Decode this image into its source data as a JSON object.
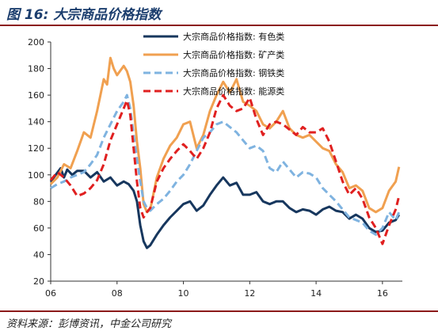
{
  "figure": {
    "title": "图 16: 大宗商品价格指数",
    "source": "资料来源：彭博资讯，中金公司研究"
  },
  "chart_data": {
    "type": "line",
    "xlim": [
      2006,
      2016.6
    ],
    "ylim": [
      20,
      200
    ],
    "x_ticks": [
      2006,
      2008,
      2010,
      2012,
      2014,
      2016
    ],
    "x_tick_labels": [
      "06",
      "08",
      "10",
      "12",
      "14",
      "16"
    ],
    "y_ticks": [
      20,
      40,
      60,
      80,
      100,
      120,
      140,
      160,
      180,
      200
    ],
    "y_tick_labels": [
      "20",
      "40",
      "60",
      "80",
      "100",
      "120",
      "140",
      "160",
      "180",
      "200"
    ],
    "legend_position": "top-center",
    "grid": false,
    "series": [
      {
        "name": "大宗商品价格指数: 有色类",
        "color": "#17375e",
        "style": "solid",
        "points": [
          [
            2006.0,
            95
          ],
          [
            2006.15,
            100
          ],
          [
            2006.3,
            105
          ],
          [
            2006.4,
            98
          ],
          [
            2006.5,
            104
          ],
          [
            2006.65,
            100
          ],
          [
            2006.8,
            103
          ],
          [
            2007.0,
            103
          ],
          [
            2007.2,
            98
          ],
          [
            2007.4,
            102
          ],
          [
            2007.6,
            95
          ],
          [
            2007.8,
            98
          ],
          [
            2008.0,
            92
          ],
          [
            2008.2,
            95
          ],
          [
            2008.35,
            93
          ],
          [
            2008.5,
            88
          ],
          [
            2008.6,
            80
          ],
          [
            2008.7,
            62
          ],
          [
            2008.8,
            50
          ],
          [
            2008.9,
            45
          ],
          [
            2009.0,
            47
          ],
          [
            2009.2,
            55
          ],
          [
            2009.4,
            62
          ],
          [
            2009.6,
            68
          ],
          [
            2009.8,
            73
          ],
          [
            2010.0,
            78
          ],
          [
            2010.2,
            80
          ],
          [
            2010.4,
            73
          ],
          [
            2010.6,
            77
          ],
          [
            2010.8,
            85
          ],
          [
            2011.0,
            92
          ],
          [
            2011.2,
            98
          ],
          [
            2011.4,
            92
          ],
          [
            2011.6,
            94
          ],
          [
            2011.8,
            85
          ],
          [
            2012.0,
            85
          ],
          [
            2012.2,
            87
          ],
          [
            2012.4,
            80
          ],
          [
            2012.6,
            78
          ],
          [
            2012.8,
            80
          ],
          [
            2013.0,
            80
          ],
          [
            2013.2,
            75
          ],
          [
            2013.4,
            72
          ],
          [
            2013.6,
            74
          ],
          [
            2013.8,
            73
          ],
          [
            2014.0,
            70
          ],
          [
            2014.2,
            74
          ],
          [
            2014.4,
            76
          ],
          [
            2014.6,
            73
          ],
          [
            2014.8,
            72
          ],
          [
            2015.0,
            67
          ],
          [
            2015.2,
            70
          ],
          [
            2015.4,
            67
          ],
          [
            2015.6,
            60
          ],
          [
            2015.8,
            57
          ],
          [
            2016.0,
            58
          ],
          [
            2016.2,
            64
          ],
          [
            2016.4,
            66
          ],
          [
            2016.5,
            70
          ]
        ]
      },
      {
        "name": "大宗商品价格指数: 矿产类",
        "color": "#f0a050",
        "style": "solid",
        "points": [
          [
            2006.0,
            93
          ],
          [
            2006.2,
            98
          ],
          [
            2006.4,
            108
          ],
          [
            2006.6,
            105
          ],
          [
            2006.8,
            118
          ],
          [
            2007.0,
            132
          ],
          [
            2007.2,
            128
          ],
          [
            2007.4,
            148
          ],
          [
            2007.6,
            172
          ],
          [
            2007.7,
            168
          ],
          [
            2007.8,
            188
          ],
          [
            2007.9,
            180
          ],
          [
            2008.0,
            175
          ],
          [
            2008.2,
            182
          ],
          [
            2008.3,
            178
          ],
          [
            2008.4,
            170
          ],
          [
            2008.5,
            152
          ],
          [
            2008.6,
            125
          ],
          [
            2008.7,
            105
          ],
          [
            2008.8,
            78
          ],
          [
            2008.9,
            72
          ],
          [
            2009.0,
            74
          ],
          [
            2009.2,
            98
          ],
          [
            2009.4,
            112
          ],
          [
            2009.6,
            122
          ],
          [
            2009.8,
            128
          ],
          [
            2010.0,
            138
          ],
          [
            2010.2,
            140
          ],
          [
            2010.4,
            120
          ],
          [
            2010.6,
            130
          ],
          [
            2010.8,
            148
          ],
          [
            2011.0,
            160
          ],
          [
            2011.2,
            170
          ],
          [
            2011.4,
            162
          ],
          [
            2011.6,
            172
          ],
          [
            2011.8,
            155
          ],
          [
            2012.0,
            152
          ],
          [
            2012.2,
            148
          ],
          [
            2012.4,
            138
          ],
          [
            2012.6,
            135
          ],
          [
            2012.8,
            140
          ],
          [
            2013.0,
            148
          ],
          [
            2013.2,
            135
          ],
          [
            2013.4,
            130
          ],
          [
            2013.6,
            128
          ],
          [
            2013.8,
            130
          ],
          [
            2014.0,
            125
          ],
          [
            2014.2,
            120
          ],
          [
            2014.4,
            118
          ],
          [
            2014.6,
            108
          ],
          [
            2014.8,
            102
          ],
          [
            2015.0,
            90
          ],
          [
            2015.2,
            92
          ],
          [
            2015.4,
            88
          ],
          [
            2015.6,
            75
          ],
          [
            2015.8,
            72
          ],
          [
            2016.0,
            75
          ],
          [
            2016.2,
            88
          ],
          [
            2016.4,
            95
          ],
          [
            2016.5,
            106
          ]
        ]
      },
      {
        "name": "大宗商品价格指数: 钢铁类",
        "color": "#7fb3e0",
        "style": "dashed",
        "points": [
          [
            2006.0,
            90
          ],
          [
            2006.2,
            93
          ],
          [
            2006.4,
            95
          ],
          [
            2006.6,
            98
          ],
          [
            2006.8,
            100
          ],
          [
            2007.0,
            102
          ],
          [
            2007.2,
            108
          ],
          [
            2007.4,
            115
          ],
          [
            2007.6,
            128
          ],
          [
            2007.8,
            138
          ],
          [
            2008.0,
            148
          ],
          [
            2008.2,
            155
          ],
          [
            2008.3,
            160
          ],
          [
            2008.4,
            150
          ],
          [
            2008.5,
            130
          ],
          [
            2008.6,
            112
          ],
          [
            2008.7,
            95
          ],
          [
            2008.8,
            80
          ],
          [
            2008.9,
            75
          ],
          [
            2009.0,
            73
          ],
          [
            2009.2,
            78
          ],
          [
            2009.4,
            82
          ],
          [
            2009.6,
            88
          ],
          [
            2009.8,
            95
          ],
          [
            2010.0,
            100
          ],
          [
            2010.2,
            108
          ],
          [
            2010.4,
            118
          ],
          [
            2010.6,
            128
          ],
          [
            2010.8,
            132
          ],
          [
            2011.0,
            138
          ],
          [
            2011.2,
            140
          ],
          [
            2011.4,
            136
          ],
          [
            2011.6,
            132
          ],
          [
            2011.8,
            126
          ],
          [
            2012.0,
            120
          ],
          [
            2012.2,
            122
          ],
          [
            2012.4,
            118
          ],
          [
            2012.6,
            105
          ],
          [
            2012.8,
            102
          ],
          [
            2013.0,
            110
          ],
          [
            2013.2,
            104
          ],
          [
            2013.4,
            98
          ],
          [
            2013.6,
            102
          ],
          [
            2013.8,
            101
          ],
          [
            2014.0,
            98
          ],
          [
            2014.2,
            90
          ],
          [
            2014.4,
            85
          ],
          [
            2014.6,
            80
          ],
          [
            2014.8,
            74
          ],
          [
            2015.0,
            68
          ],
          [
            2015.2,
            66
          ],
          [
            2015.4,
            64
          ],
          [
            2015.6,
            58
          ],
          [
            2015.8,
            55
          ],
          [
            2016.0,
            60
          ],
          [
            2016.2,
            72
          ],
          [
            2016.4,
            66
          ],
          [
            2016.5,
            72
          ]
        ]
      },
      {
        "name": "大宗商品价格指数: 能源类",
        "color": "#e02020",
        "style": "dashed",
        "points": [
          [
            2006.0,
            96
          ],
          [
            2006.2,
            102
          ],
          [
            2006.4,
            98
          ],
          [
            2006.6,
            92
          ],
          [
            2006.8,
            84
          ],
          [
            2007.0,
            86
          ],
          [
            2007.2,
            90
          ],
          [
            2007.4,
            96
          ],
          [
            2007.6,
            108
          ],
          [
            2007.8,
            126
          ],
          [
            2008.0,
            138
          ],
          [
            2008.2,
            150
          ],
          [
            2008.3,
            156
          ],
          [
            2008.4,
            145
          ],
          [
            2008.5,
            120
          ],
          [
            2008.6,
            95
          ],
          [
            2008.7,
            75
          ],
          [
            2008.8,
            68
          ],
          [
            2008.9,
            72
          ],
          [
            2009.0,
            75
          ],
          [
            2009.2,
            95
          ],
          [
            2009.4,
            105
          ],
          [
            2009.6,
            112
          ],
          [
            2009.8,
            118
          ],
          [
            2010.0,
            123
          ],
          [
            2010.2,
            118
          ],
          [
            2010.4,
            112
          ],
          [
            2010.6,
            120
          ],
          [
            2010.8,
            132
          ],
          [
            2011.0,
            150
          ],
          [
            2011.2,
            160
          ],
          [
            2011.4,
            152
          ],
          [
            2011.6,
            148
          ],
          [
            2011.8,
            150
          ],
          [
            2012.0,
            158
          ],
          [
            2012.2,
            142
          ],
          [
            2012.4,
            130
          ],
          [
            2012.6,
            138
          ],
          [
            2012.8,
            140
          ],
          [
            2013.0,
            138
          ],
          [
            2013.2,
            134
          ],
          [
            2013.4,
            130
          ],
          [
            2013.6,
            136
          ],
          [
            2013.8,
            132
          ],
          [
            2014.0,
            132
          ],
          [
            2014.2,
            135
          ],
          [
            2014.4,
            125
          ],
          [
            2014.6,
            110
          ],
          [
            2014.8,
            95
          ],
          [
            2015.0,
            85
          ],
          [
            2015.2,
            90
          ],
          [
            2015.4,
            82
          ],
          [
            2015.6,
            68
          ],
          [
            2015.8,
            60
          ],
          [
            2016.0,
            48
          ],
          [
            2016.2,
            62
          ],
          [
            2016.4,
            74
          ],
          [
            2016.5,
            84
          ]
        ]
      }
    ]
  }
}
